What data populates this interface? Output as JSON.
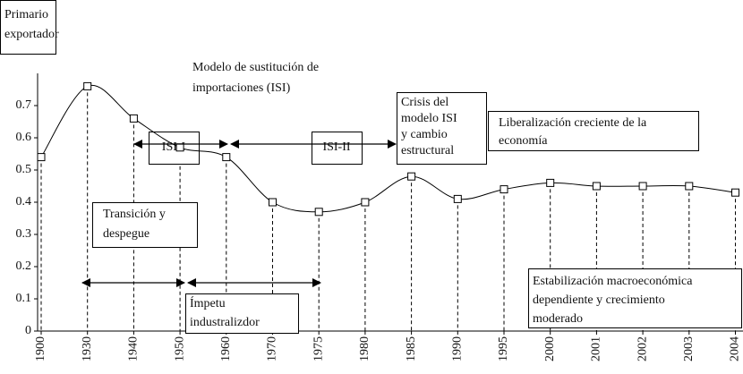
{
  "chart_data": {
    "type": "line",
    "categories": [
      "1900",
      "1930",
      "1940",
      "1950",
      "1960",
      "1970",
      "1975",
      "1980",
      "1985",
      "1990",
      "1995",
      "2000",
      "2001",
      "2002",
      "2003",
      "2004"
    ],
    "values": [
      0.54,
      0.76,
      0.66,
      0.57,
      0.54,
      0.4,
      0.37,
      0.4,
      0.48,
      0.41,
      0.44,
      0.46,
      0.45,
      0.45,
      0.45,
      0.43
    ],
    "color": "#000000",
    "ylim": [
      0,
      0.8
    ],
    "yticks": [
      0,
      0.1,
      0.2,
      0.3,
      0.4,
      0.5,
      0.6,
      0.7
    ],
    "annotations": [
      {
        "lines": [
          "Primario",
          "exportador"
        ]
      },
      {
        "lines": [
          "Modelo de sustitución de",
          "importaciones (ISI)"
        ]
      },
      {
        "lines": [
          "ISI-I"
        ]
      },
      {
        "lines": [
          "ISI-II"
        ]
      },
      {
        "lines": [
          "Crisis del",
          "modelo ISI",
          "y cambio",
          "estructural"
        ]
      },
      {
        "lines": [
          "Liberalización creciente de la",
          "economía"
        ]
      },
      {
        "lines": [
          "Transición y",
          "despegue"
        ]
      },
      {
        "lines": [
          "Ímpetu",
          "industralizdor"
        ]
      },
      {
        "lines": [
          "Estabilización macroeconómica",
          "dependiente y crecimiento",
          "moderado"
        ]
      }
    ]
  }
}
